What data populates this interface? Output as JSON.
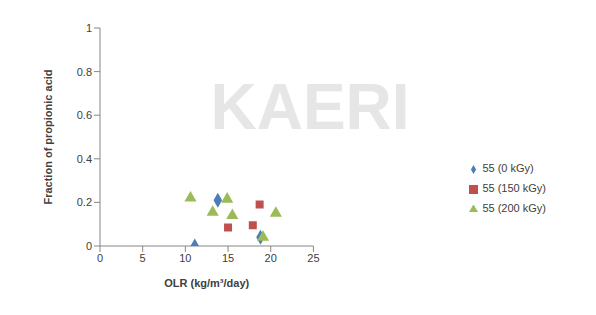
{
  "chart_data": {
    "type": "scatter",
    "x_label": "OLR (kg/m³/day)",
    "y_label": "Fraction of propionic acid",
    "annotations": [
      "KAERI"
    ],
    "xlim": [
      0,
      25
    ],
    "xticks": [
      0,
      5,
      10,
      15,
      20,
      25
    ],
    "ylim": [
      0,
      1
    ],
    "yticks": [
      0,
      0.2,
      0.4,
      0.6,
      0.8,
      1
    ],
    "grid": false,
    "legend": "right",
    "series": [
      {
        "name": "55 (0 kGy)",
        "color": "#4a7ebb",
        "marker": "diamond",
        "x": [
          11.1,
          13.8,
          18.8
        ],
        "values": [
          0,
          0.21,
          0.04
        ]
      },
      {
        "name": "55 (150 kGy)",
        "color": "#c0504d",
        "marker": "square",
        "x": [
          15,
          17.9,
          18.7
        ],
        "values": [
          0.085,
          0.095,
          0.19
        ]
      },
      {
        "name": "55 (200 kGy)",
        "color": "#9bbb59",
        "marker": "triangle",
        "x": [
          10.6,
          13.2,
          14.9,
          15.5,
          19.1,
          20.6
        ],
        "values": [
          0.22,
          0.155,
          0.215,
          0.14,
          0.04,
          0.15
        ]
      }
    ]
  }
}
